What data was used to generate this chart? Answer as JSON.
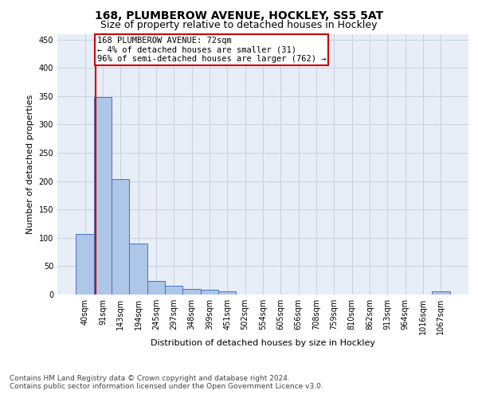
{
  "title": "168, PLUMBEROW AVENUE, HOCKLEY, SS5 5AT",
  "subtitle": "Size of property relative to detached houses in Hockley",
  "xlabel": "Distribution of detached houses by size in Hockley",
  "ylabel": "Number of detached properties",
  "categories": [
    "40sqm",
    "91sqm",
    "143sqm",
    "194sqm",
    "245sqm",
    "297sqm",
    "348sqm",
    "399sqm",
    "451sqm",
    "502sqm",
    "554sqm",
    "605sqm",
    "656sqm",
    "708sqm",
    "759sqm",
    "810sqm",
    "862sqm",
    "913sqm",
    "964sqm",
    "1016sqm",
    "1067sqm"
  ],
  "values": [
    107,
    349,
    203,
    90,
    24,
    15,
    10,
    8,
    5,
    0,
    0,
    0,
    0,
    0,
    0,
    0,
    0,
    0,
    0,
    0,
    5
  ],
  "bar_color": "#aec6e8",
  "bar_edge_color": "#4472c4",
  "vline_color": "#cc0000",
  "vline_x": 0.62,
  "annotation_text": "168 PLUMBEROW AVENUE: 72sqm\n← 4% of detached houses are smaller (31)\n96% of semi-detached houses are larger (762) →",
  "annotation_box_color": "#ffffff",
  "annotation_box_edge_color": "#cc0000",
  "ylim": [
    0,
    460
  ],
  "yticks": [
    0,
    50,
    100,
    150,
    200,
    250,
    300,
    350,
    400,
    450
  ],
  "grid_color": "#c8d0dc",
  "bg_color": "#e8eef7",
  "footer_text": "Contains HM Land Registry data © Crown copyright and database right 2024.\nContains public sector information licensed under the Open Government Licence v3.0.",
  "title_fontsize": 10,
  "subtitle_fontsize": 9,
  "xlabel_fontsize": 8,
  "ylabel_fontsize": 8,
  "tick_fontsize": 7,
  "annot_fontsize": 7.5,
  "footer_fontsize": 6.5
}
